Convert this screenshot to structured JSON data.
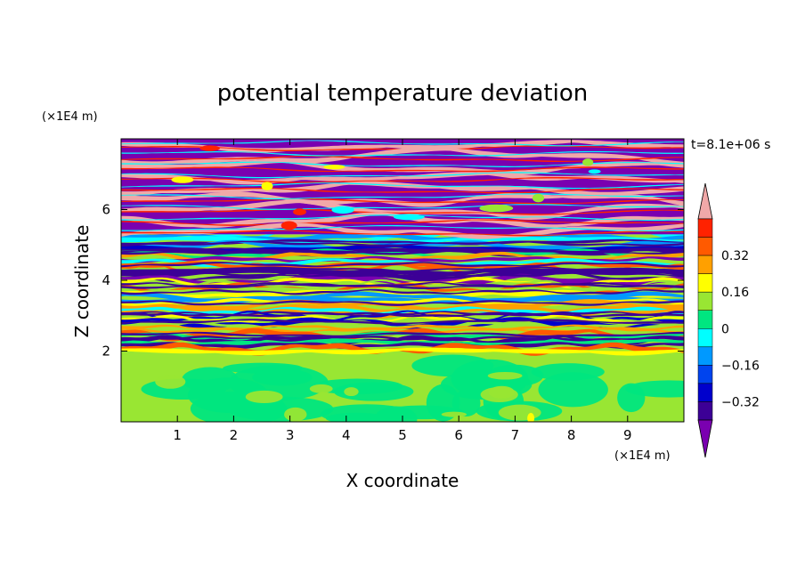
{
  "chart_data": {
    "type": "heatmap",
    "title": "potential temperature deviation",
    "time_label": "t=8.1e+06 s",
    "xlabel": "X coordinate",
    "ylabel": "Z coordinate",
    "x_unit": "(×1E4 m)",
    "y_unit": "(×1E4 m)",
    "xlim": [
      0,
      10
    ],
    "ylim": [
      0,
      8
    ],
    "x_ticks": [
      1,
      2,
      3,
      4,
      5,
      6,
      7,
      8,
      9
    ],
    "y_ticks": [
      2,
      4,
      6
    ],
    "colorbar": {
      "levels": [
        -0.48,
        -0.4,
        -0.32,
        -0.24,
        -0.16,
        -0.08,
        0,
        0.08,
        0.16,
        0.24,
        0.32,
        0.4,
        0.48
      ],
      "colors": [
        "#7a00b0",
        "#3c0096",
        "#0000cc",
        "#0044ee",
        "#0099ff",
        "#00ffff",
        "#00e680",
        "#99e633",
        "#ffff00",
        "#ffa000",
        "#ff5a00",
        "#ff2200",
        "#f0a8a8"
      ],
      "tick_labels": [
        "0.32",
        "0.16",
        "0",
        "−0.16",
        "−0.32"
      ],
      "tick_values": [
        0.32,
        0.16,
        0,
        -0.16,
        -0.32
      ],
      "extend": "both"
    },
    "layers": [
      {
        "z_range": [
          0,
          2
        ],
        "pattern": "smooth convective cells",
        "values_range": [
          0,
          0.16
        ]
      },
      {
        "z_range": [
          2,
          5.3
        ],
        "pattern": "thin wavy bands",
        "values_range": [
          -0.48,
          0.48
        ]
      },
      {
        "z_range": [
          5.3,
          8
        ],
        "pattern": "alternating wide bands",
        "values_range": [
          -0.48,
          0.48
        ]
      }
    ]
  }
}
